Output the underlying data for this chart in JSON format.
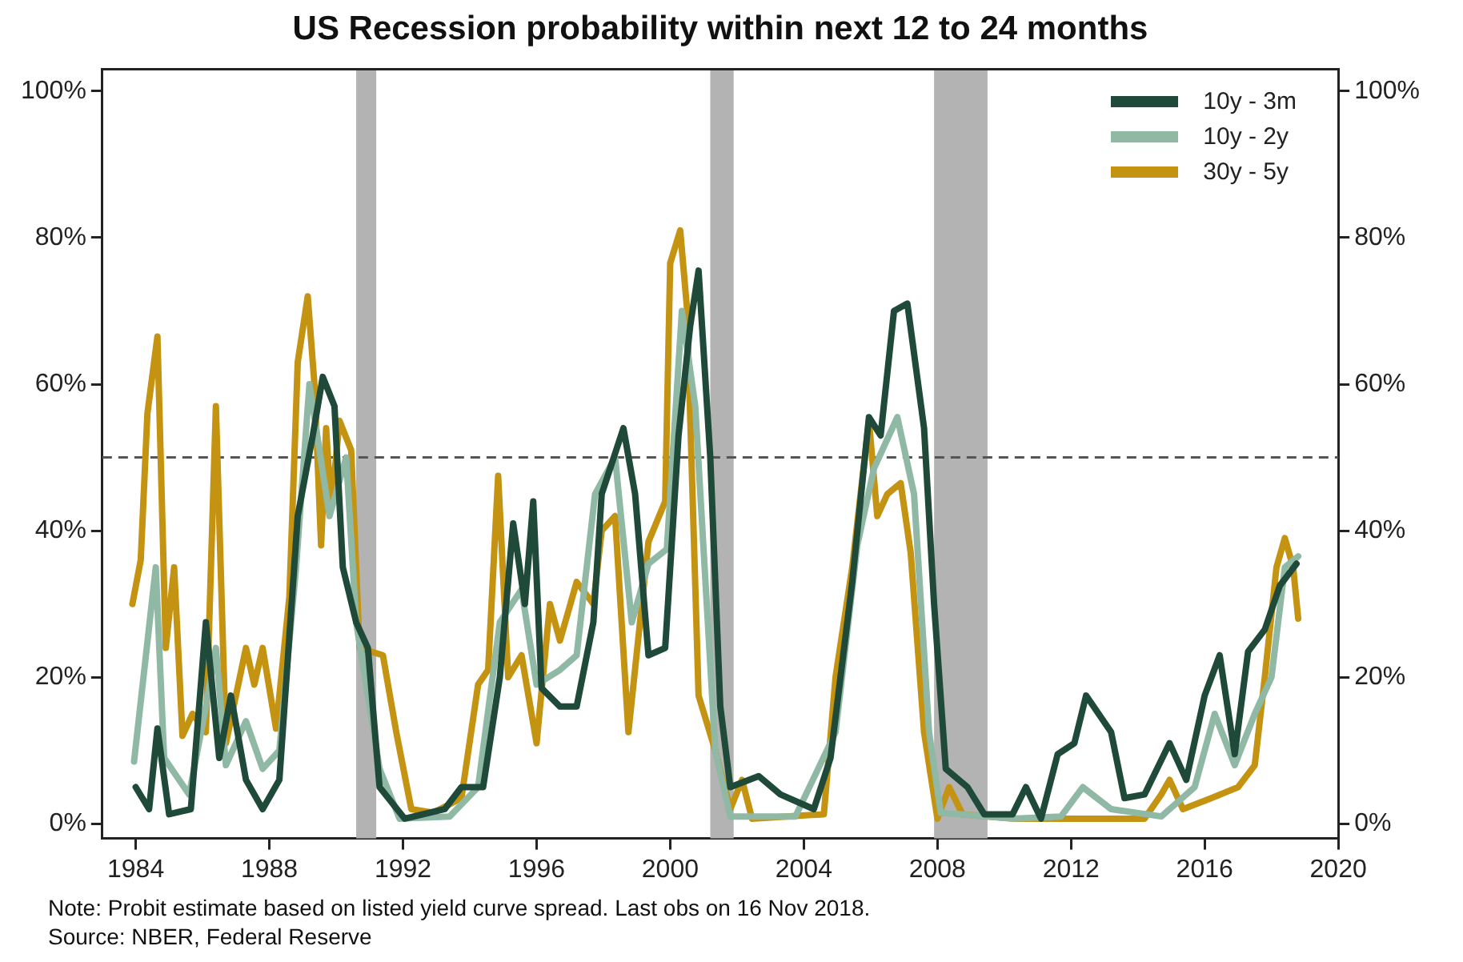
{
  "chart_data": {
    "type": "line",
    "title": "US Recession probability within next 12 to 24 months",
    "xlim": [
      1983,
      2020
    ],
    "xticks": [
      1984,
      1988,
      1992,
      1996,
      2000,
      2004,
      2008,
      2012,
      2016,
      2020
    ],
    "ylim": [
      -2,
      103
    ],
    "yticks": [
      {
        "value": 0,
        "label": "0%"
      },
      {
        "value": 20,
        "label": "20%"
      },
      {
        "value": 40,
        "label": "40%"
      },
      {
        "value": 60,
        "label": "60%"
      },
      {
        "value": 80,
        "label": "80%"
      },
      {
        "value": 100,
        "label": "100%"
      }
    ],
    "y2lim": [
      -2,
      103
    ],
    "y2ticks": [
      {
        "value": 0,
        "label": "0%"
      },
      {
        "value": 20,
        "label": "20%"
      },
      {
        "value": 40,
        "label": "40%"
      },
      {
        "value": 60,
        "label": "60%"
      },
      {
        "value": 80,
        "label": "80%"
      },
      {
        "value": 100,
        "label": "100%"
      }
    ],
    "grid": false,
    "legend": "top right",
    "marker": "none",
    "line_style": "solid",
    "ref_lines": [
      {
        "axis": "y",
        "value": 50,
        "color": "#555555",
        "line_style": "dashed"
      }
    ],
    "bands": [
      {
        "axis": "x",
        "from": 1990.6,
        "to": 1991.2,
        "color": "#b3b3b3"
      },
      {
        "axis": "x",
        "from": 2001.2,
        "to": 2001.9,
        "color": "#b3b3b3"
      },
      {
        "axis": "x",
        "from": 2007.9,
        "to": 2009.5,
        "color": "#b3b3b3"
      }
    ],
    "annotations": [
      "Note: Probit estimate based on listed yield curve spread. Last obs on 16 Nov 2018.",
      "Source: NBER, Federal Reserve"
    ],
    "series": [
      {
        "name": "10y - 3m",
        "color": "#1f4a3a",
        "x": [
          1984.0,
          1984.4,
          1984.65,
          1985.0,
          1985.65,
          1986.1,
          1986.5,
          1986.85,
          1987.3,
          1987.8,
          1988.3,
          1988.85,
          1989.3,
          1989.6,
          1989.95,
          1990.2,
          1990.6,
          1990.95,
          1991.3,
          1992.05,
          1993.25,
          1993.75,
          1994.4,
          1994.9,
          1995.3,
          1995.65,
          1995.9,
          1996.15,
          1996.7,
          1997.2,
          1997.7,
          1997.95,
          1998.6,
          1998.95,
          1999.35,
          1999.85,
          2000.25,
          2000.6,
          2000.85,
          2001.2,
          2001.5,
          2001.8,
          2002.65,
          2003.3,
          2004.3,
          2004.8,
          2005.45,
          2005.95,
          2006.3,
          2006.7,
          2007.1,
          2007.6,
          2007.9,
          2008.25,
          2008.9,
          2009.4,
          2010.25,
          2010.65,
          2011.1,
          2011.6,
          2012.1,
          2012.45,
          2013.2,
          2013.6,
          2014.2,
          2014.95,
          2015.45,
          2016.0,
          2016.45,
          2016.9,
          2017.3,
          2017.8,
          2018.25,
          2018.75
        ],
        "values": [
          5,
          2,
          13,
          1.3,
          2,
          27.5,
          9,
          17.5,
          6,
          2,
          6,
          42,
          53,
          61,
          57,
          35,
          27.5,
          24,
          5,
          0.7,
          2,
          5,
          5,
          20,
          41,
          30,
          44,
          18.5,
          16,
          16,
          27.5,
          45,
          54,
          45,
          23,
          24,
          53,
          68,
          75.5,
          50,
          16,
          5,
          6.5,
          4,
          2,
          9,
          33,
          55.5,
          53,
          70,
          71,
          54,
          30,
          7.5,
          5,
          1.3,
          1.3,
          5,
          0.7,
          9.5,
          11,
          17.5,
          12.5,
          3.5,
          4,
          11,
          6,
          17.5,
          23,
          9.5,
          23.5,
          26.5,
          32.5,
          35.5
        ]
      },
      {
        "name": "10y - 2y",
        "color": "#8fb8a5",
        "x": [
          1983.95,
          1984.6,
          1984.85,
          1985.6,
          1986.1,
          1986.4,
          1986.7,
          1987.3,
          1987.8,
          1988.3,
          1988.8,
          1989.2,
          1989.8,
          1990.3,
          1990.6,
          1991.3,
          1991.9,
          1993.4,
          1994.25,
          1994.9,
          1995.55,
          1996.0,
          1996.7,
          1997.2,
          1997.75,
          1998.35,
          1998.85,
          1999.35,
          1999.9,
          2000.35,
          2000.75,
          2001.35,
          2001.8,
          2003.75,
          2004.95,
          2005.6,
          2006.1,
          2006.8,
          2007.3,
          2007.75,
          2008.1,
          2010.25,
          2011.7,
          2012.35,
          2013.2,
          2014.7,
          2015.7,
          2016.3,
          2016.9,
          2017.5,
          2018.0,
          2018.4,
          2018.8
        ],
        "values": [
          8.5,
          35,
          9,
          4,
          16,
          24,
          8,
          14,
          7.5,
          10,
          35,
          60,
          42,
          50,
          27.5,
          7.5,
          0.7,
          1,
          5,
          27.5,
          32,
          19,
          21,
          23,
          45,
          50,
          27.5,
          35.5,
          37.5,
          70,
          57,
          10,
          1,
          1,
          12.5,
          38,
          48.5,
          55.5,
          45,
          12.5,
          1.5,
          0.7,
          1,
          5,
          2,
          1,
          5,
          15,
          8,
          15,
          20,
          35,
          36.5
        ]
      },
      {
        "name": "30y - 5y",
        "color": "#c49311",
        "x": [
          1983.9,
          1984.15,
          1984.35,
          1984.65,
          1984.9,
          1985.15,
          1985.4,
          1985.7,
          1986.1,
          1986.4,
          1986.7,
          1987.3,
          1987.55,
          1987.8,
          1988.2,
          1988.6,
          1988.85,
          1989.15,
          1989.35,
          1989.55,
          1989.7,
          1989.85,
          1990.1,
          1990.45,
          1990.7,
          1991.4,
          1991.8,
          1992.25,
          1992.9,
          1993.75,
          1994.25,
          1994.55,
          1994.85,
          1995.15,
          1995.55,
          1996.0,
          1996.4,
          1996.7,
          1997.2,
          1997.7,
          1997.95,
          1998.35,
          1998.75,
          1999.35,
          1999.85,
          2000.0,
          2000.3,
          2000.5,
          2000.85,
          2001.35,
          2001.8,
          2002.15,
          2002.45,
          2004.6,
          2004.95,
          2005.45,
          2005.95,
          2006.2,
          2006.5,
          2006.9,
          2007.2,
          2007.6,
          2008.0,
          2008.35,
          2008.75,
          2010.25,
          2014.2,
          2014.7,
          2014.95,
          2015.35,
          2016.2,
          2017.0,
          2017.5,
          2017.8,
          2018.15,
          2018.4,
          2018.65,
          2018.8
        ],
        "values": [
          30,
          36,
          56,
          66.5,
          24,
          35,
          12,
          15,
          12.5,
          57,
          11,
          24,
          19,
          24,
          13,
          31,
          63,
          72,
          60,
          38,
          54,
          43,
          55,
          51,
          24,
          23,
          12.5,
          2,
          1.5,
          3.5,
          19,
          21,
          47.5,
          20,
          23,
          11,
          30,
          25,
          33,
          30,
          40,
          42,
          12.5,
          38.5,
          44,
          76.5,
          81,
          70.5,
          17.5,
          10,
          2,
          6,
          0.7,
          1.3,
          20,
          35,
          55,
          42,
          45,
          46.5,
          37,
          12.5,
          0.7,
          5,
          1.3,
          0.7,
          0.7,
          4,
          6,
          2,
          3.5,
          5,
          8,
          20,
          35,
          39,
          35,
          28
        ]
      }
    ]
  }
}
